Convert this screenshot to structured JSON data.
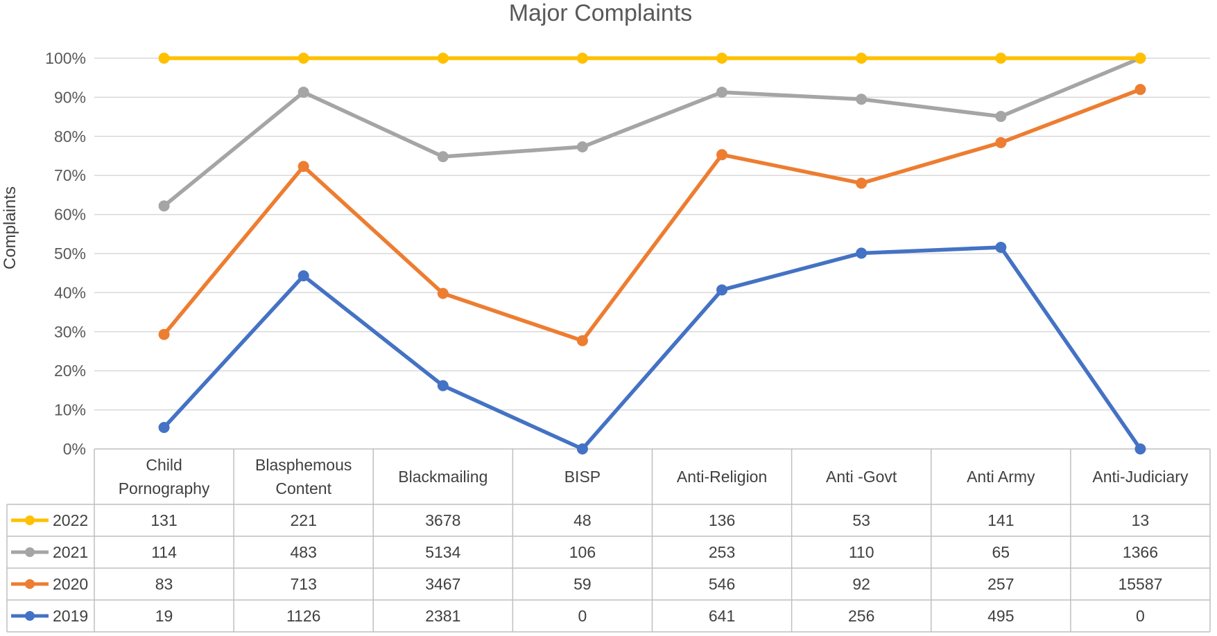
{
  "chart_data": {
    "type": "line",
    "title": "Major Complaints",
    "ylabel": "Complaints",
    "xlabel": "",
    "ylim": [
      0,
      100
    ],
    "y_ticks": [
      "0%",
      "10%",
      "20%",
      "30%",
      "40%",
      "50%",
      "60%",
      "70%",
      "80%",
      "90%",
      "100%"
    ],
    "categories": [
      [
        "Child",
        "Pornography"
      ],
      [
        "Blasphemous",
        "Content"
      ],
      [
        "Blackmailing"
      ],
      [
        "BISP"
      ],
      [
        "Anti-Religion"
      ],
      [
        "Anti -Govt"
      ],
      [
        "Anti Army"
      ],
      [
        "Anti-Judiciary"
      ]
    ],
    "grid": true,
    "legend": "data-table-left",
    "series": [
      {
        "name": "2022",
        "color": "#FFC000",
        "table_values": [
          "131",
          "221",
          "3678",
          "48",
          "136",
          "53",
          "141",
          "13"
        ],
        "values": [
          100,
          100,
          100,
          100,
          100,
          100,
          100,
          100
        ]
      },
      {
        "name": "2021",
        "color": "#A5A5A5",
        "table_values": [
          "114",
          "483",
          "5134",
          "106",
          "253",
          "110",
          "65",
          "1366"
        ],
        "values": [
          62.2,
          91.3,
          74.8,
          77.3,
          91.3,
          89.5,
          85.1,
          100
        ]
      },
      {
        "name": "2020",
        "color": "#ED7D31",
        "table_values": [
          "83",
          "713",
          "3467",
          "59",
          "546",
          "92",
          "257",
          "15587"
        ],
        "values": [
          29.3,
          72.3,
          39.8,
          27.7,
          75.3,
          68.0,
          78.4,
          92.0
        ]
      },
      {
        "name": "2019",
        "color": "#4472C4",
        "table_values": [
          "19",
          "1126",
          "2381",
          "0",
          "641",
          "256",
          "495",
          "0"
        ],
        "values": [
          5.5,
          44.3,
          16.2,
          0,
          40.7,
          50.1,
          51.6,
          0
        ]
      }
    ]
  }
}
